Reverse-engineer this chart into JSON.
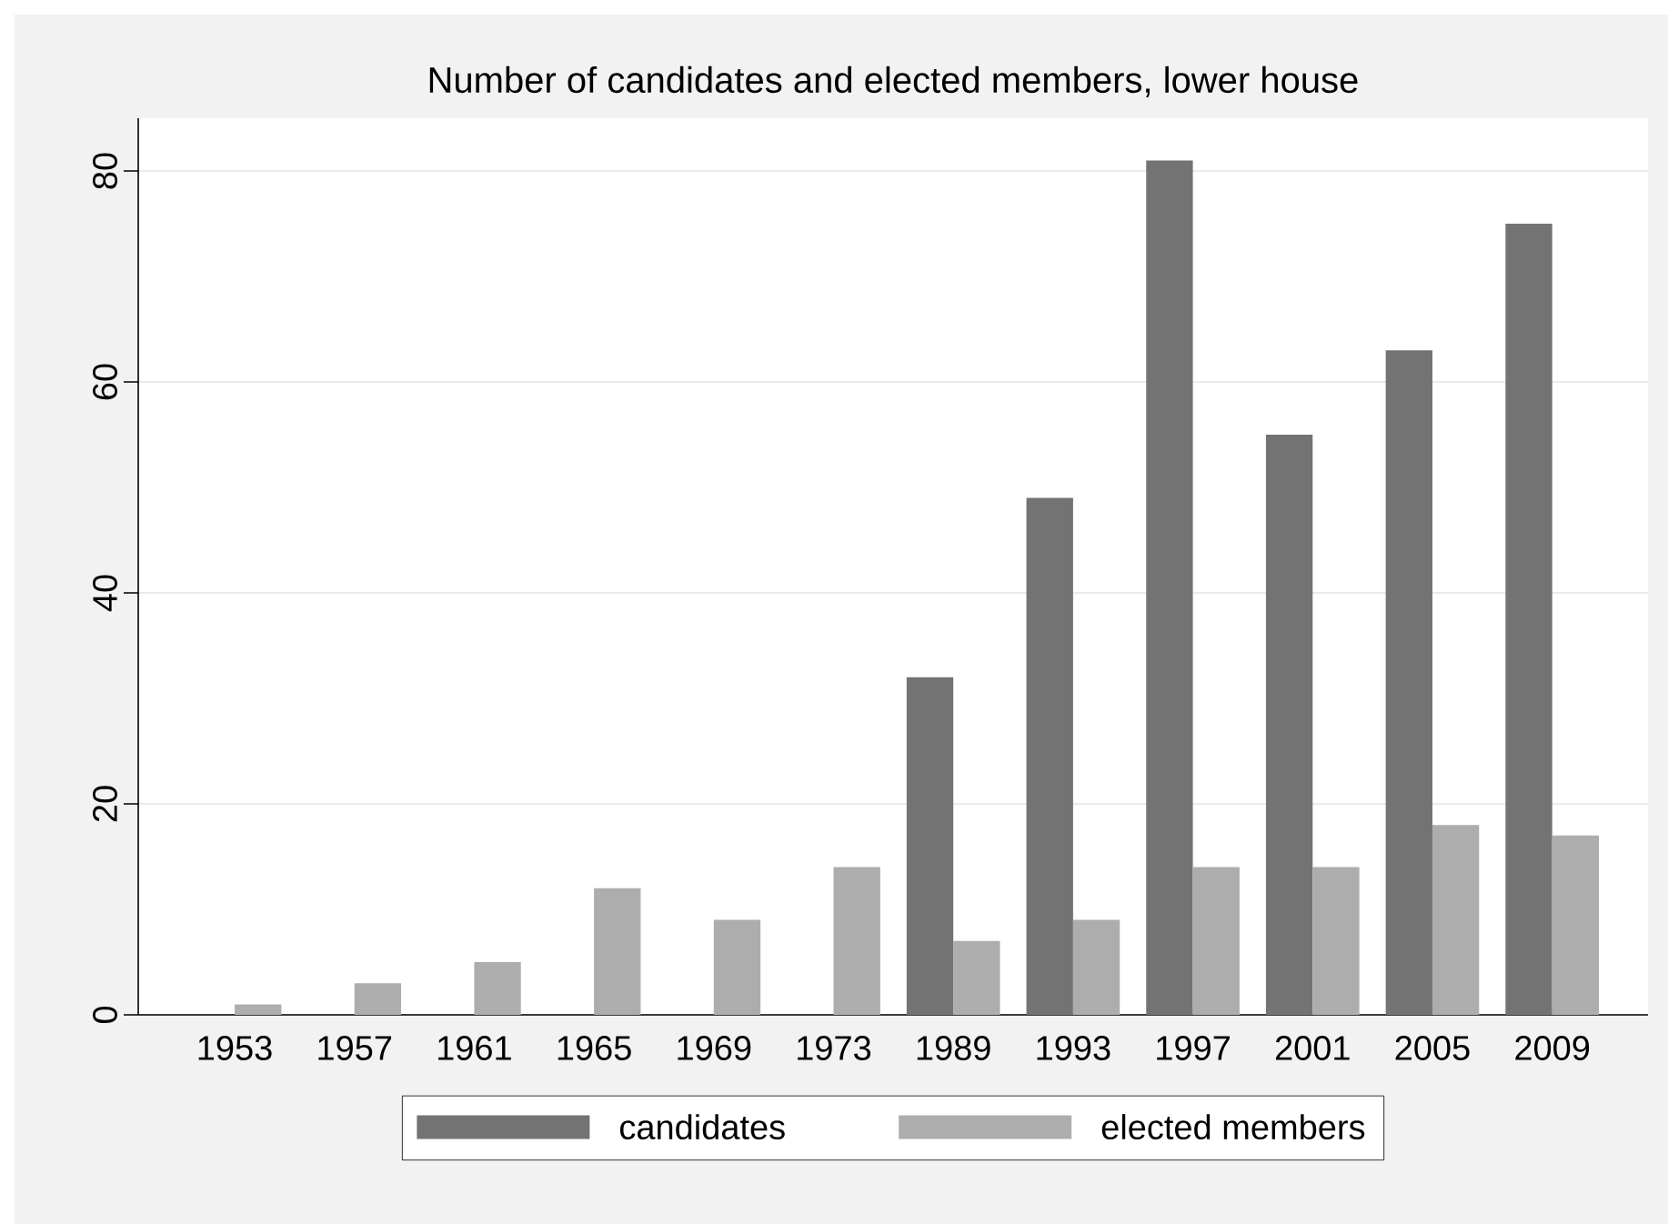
{
  "chart_data": {
    "type": "bar",
    "title": "Number of candidates and elected members, lower house",
    "categories": [
      "1953",
      "1957",
      "1961",
      "1965",
      "1969",
      "1973",
      "1989",
      "1993",
      "1997",
      "2001",
      "2005",
      "2009"
    ],
    "series": [
      {
        "name": "candidates",
        "color": "#737373",
        "values": [
          null,
          null,
          null,
          null,
          null,
          null,
          32,
          49,
          81,
          55,
          63,
          75
        ]
      },
      {
        "name": "elected members",
        "color": "#adadad",
        "values": [
          1,
          3,
          5,
          12,
          9,
          14,
          7,
          9,
          14,
          14,
          18,
          17
        ]
      }
    ],
    "ylim": [
      0,
      85
    ],
    "yticks": [
      0,
      20,
      40,
      60,
      80
    ],
    "grid": "y",
    "legend": "bottom"
  }
}
